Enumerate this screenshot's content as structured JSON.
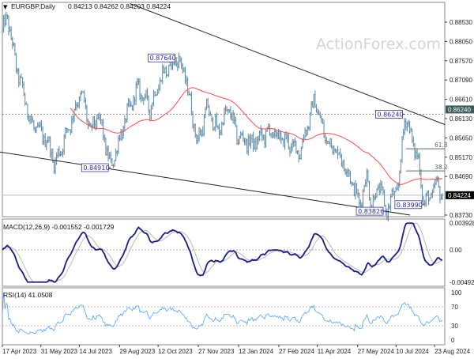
{
  "header": {
    "symbol": "EURGBP,Daily",
    "ohlc": "0.84213 0.84262 0.84203 0.84224"
  },
  "watermark": "ActionForex.com",
  "colors": {
    "bars": "#5b87a3",
    "ma": "#ff4a4a",
    "macd": "#1a1a8c",
    "signal": "#b8b8b8",
    "rsi": "#4aa3ff",
    "label_border": "#3333aa",
    "label_text": "#2a2ab0"
  },
  "chart_data": {
    "type": "ohlc",
    "title": "EURGBP,Daily",
    "price_axis": {
      "ticks": [
        "0.88530",
        "0.88050",
        "0.87570",
        "0.87090",
        "0.86610",
        "0.86130",
        "0.85650",
        "0.85170",
        "0.84690",
        "0.83730"
      ],
      "ylim": [
        0.8373,
        0.8853
      ],
      "current": "0.84224",
      "level": "0.86240"
    },
    "x_ticks": [
      {
        "date": "2023-04-17",
        "label": "17 Apr 2023"
      },
      {
        "date": "2023-05-31",
        "label": "31 May 2023"
      },
      {
        "date": "2023-07-14",
        "label": "14 Jul 2023"
      },
      {
        "date": "2023-08-29",
        "label": "29 Aug 2023"
      },
      {
        "date": "2023-10-12",
        "label": "12 Oct 2023"
      },
      {
        "date": "2023-11-27",
        "label": "27 Nov 2023"
      },
      {
        "date": "2024-01-12",
        "label": "12 Jan 2024"
      },
      {
        "date": "2024-02-27",
        "label": "27 Feb 2024"
      },
      {
        "date": "2024-04-11",
        "label": "11 Apr 2024"
      },
      {
        "date": "2024-05-27",
        "label": "27 May 2024"
      },
      {
        "date": "2024-07-10",
        "label": "10 Jul 2024"
      },
      {
        "date": "2024-08-23",
        "label": "23 Aug 2024"
      }
    ],
    "price_path": [
      [
        "2023-04-17",
        0.883
      ],
      [
        "2023-04-23",
        0.8865
      ],
      [
        "2023-05-02",
        0.875
      ],
      [
        "2023-05-20",
        0.86
      ],
      [
        "2023-06-07",
        0.856
      ],
      [
        "2023-06-16",
        0.85
      ],
      [
        "2023-06-30",
        0.858
      ],
      [
        "2023-07-16",
        0.868
      ],
      [
        "2023-07-27",
        0.858
      ],
      [
        "2023-08-05",
        0.862
      ],
      [
        "2023-08-19",
        0.8491
      ],
      [
        "2023-09-06",
        0.862
      ],
      [
        "2023-09-19",
        0.869
      ],
      [
        "2023-10-03",
        0.864
      ],
      [
        "2023-10-16",
        0.872
      ],
      [
        "2023-11-03",
        0.8764
      ],
      [
        "2023-11-12",
        0.872
      ],
      [
        "2023-11-26",
        0.855
      ],
      [
        "2023-12-07",
        0.864
      ],
      [
        "2023-12-19",
        0.858
      ],
      [
        "2024-01-01",
        0.864
      ],
      [
        "2024-01-10",
        0.857
      ],
      [
        "2024-01-28",
        0.855
      ],
      [
        "2024-02-15",
        0.858
      ],
      [
        "2024-03-04",
        0.856
      ],
      [
        "2024-03-22",
        0.853
      ],
      [
        "2024-04-08",
        0.866
      ],
      [
        "2024-04-19",
        0.857
      ],
      [
        "2024-05-07",
        0.852
      ],
      [
        "2024-05-20",
        0.846
      ],
      [
        "2024-05-29",
        0.84
      ],
      [
        "2024-06-07",
        0.847
      ],
      [
        "2024-06-12",
        0.8395
      ],
      [
        "2024-06-21",
        0.845
      ],
      [
        "2024-06-28",
        0.8383
      ],
      [
        "2024-07-07",
        0.842
      ],
      [
        "2024-07-13",
        0.845
      ],
      [
        "2024-07-20",
        0.8624
      ],
      [
        "2024-07-27",
        0.857
      ],
      [
        "2024-08-05",
        0.85
      ],
      [
        "2024-08-11",
        0.8399
      ],
      [
        "2024-08-18",
        0.842
      ],
      [
        "2024-08-26",
        0.845
      ],
      [
        "2024-09-01",
        0.8422
      ]
    ],
    "annotations": [
      {
        "date": "2023-11-03",
        "price": 0.8764,
        "label": "0.87640"
      },
      {
        "date": "2023-08-19",
        "price": 0.8491,
        "label": "0.84910"
      },
      {
        "date": "2024-07-20",
        "price": 0.8624,
        "label": "0.86240"
      },
      {
        "date": "2024-06-28",
        "price": 0.83826,
        "label": "0.83826"
      },
      {
        "date": "2024-08-11",
        "price": 0.8399,
        "label": "0.83990"
      }
    ],
    "trendlines": [
      {
        "from": [
          "2023-09-10",
          0.8899
        ],
        "to": [
          "2024-09-04",
          0.8598
        ]
      },
      {
        "from": [
          "2023-04-14",
          0.853
        ],
        "to": [
          "2024-07-26",
          0.8373
        ]
      }
    ],
    "fibonacci": [
      {
        "label": "61.8",
        "price": 0.8538
      },
      {
        "label": "38.2",
        "price": 0.8483
      }
    ],
    "moving_average": "red line",
    "macd": {
      "label": "MACD(12,26,9) -0.001552 -0.001729",
      "ticks": [
        "0.003928",
        "0.00",
        "-0.004929"
      ],
      "ylim": [
        -0.004929,
        0.003928
      ]
    },
    "rsi": {
      "label": "RSI(14) 41.0508",
      "ticks": [
        "100",
        "70",
        "30",
        "0"
      ],
      "ylim": [
        0,
        100
      ]
    }
  }
}
